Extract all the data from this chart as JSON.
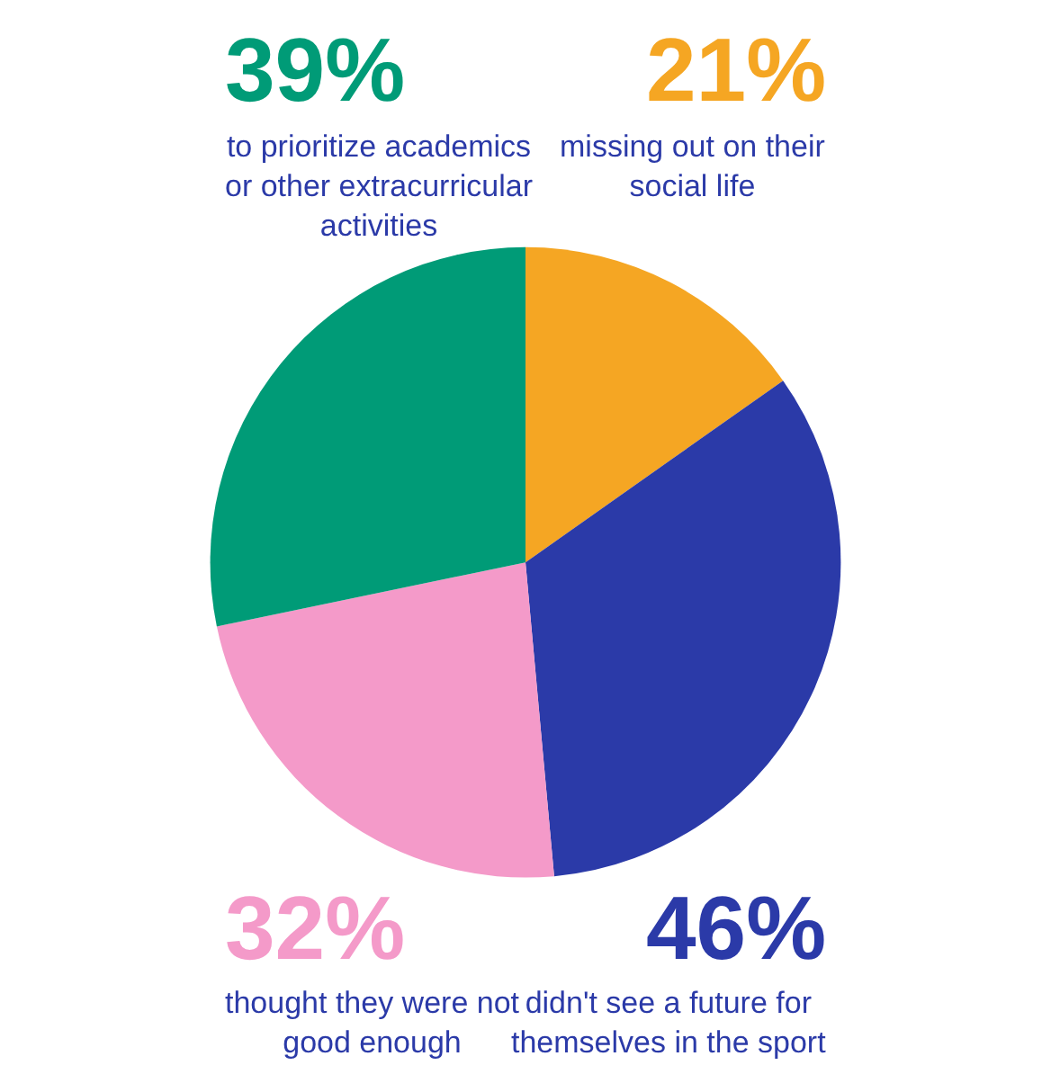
{
  "chart_data": {
    "type": "pie",
    "categories": [
      "missing out on their social life",
      "didn't see a future for themselves in the sport",
      "thought they were not good enough",
      "to prioritize academics or other extracurricular activities"
    ],
    "values": [
      21,
      46,
      32,
      39
    ],
    "value_labels": [
      "21%",
      "46%",
      "32%",
      "39%"
    ],
    "colors": [
      "#f5a623",
      "#2b3aa8",
      "#f49ac9",
      "#009b77"
    ],
    "legend": false
  }
}
